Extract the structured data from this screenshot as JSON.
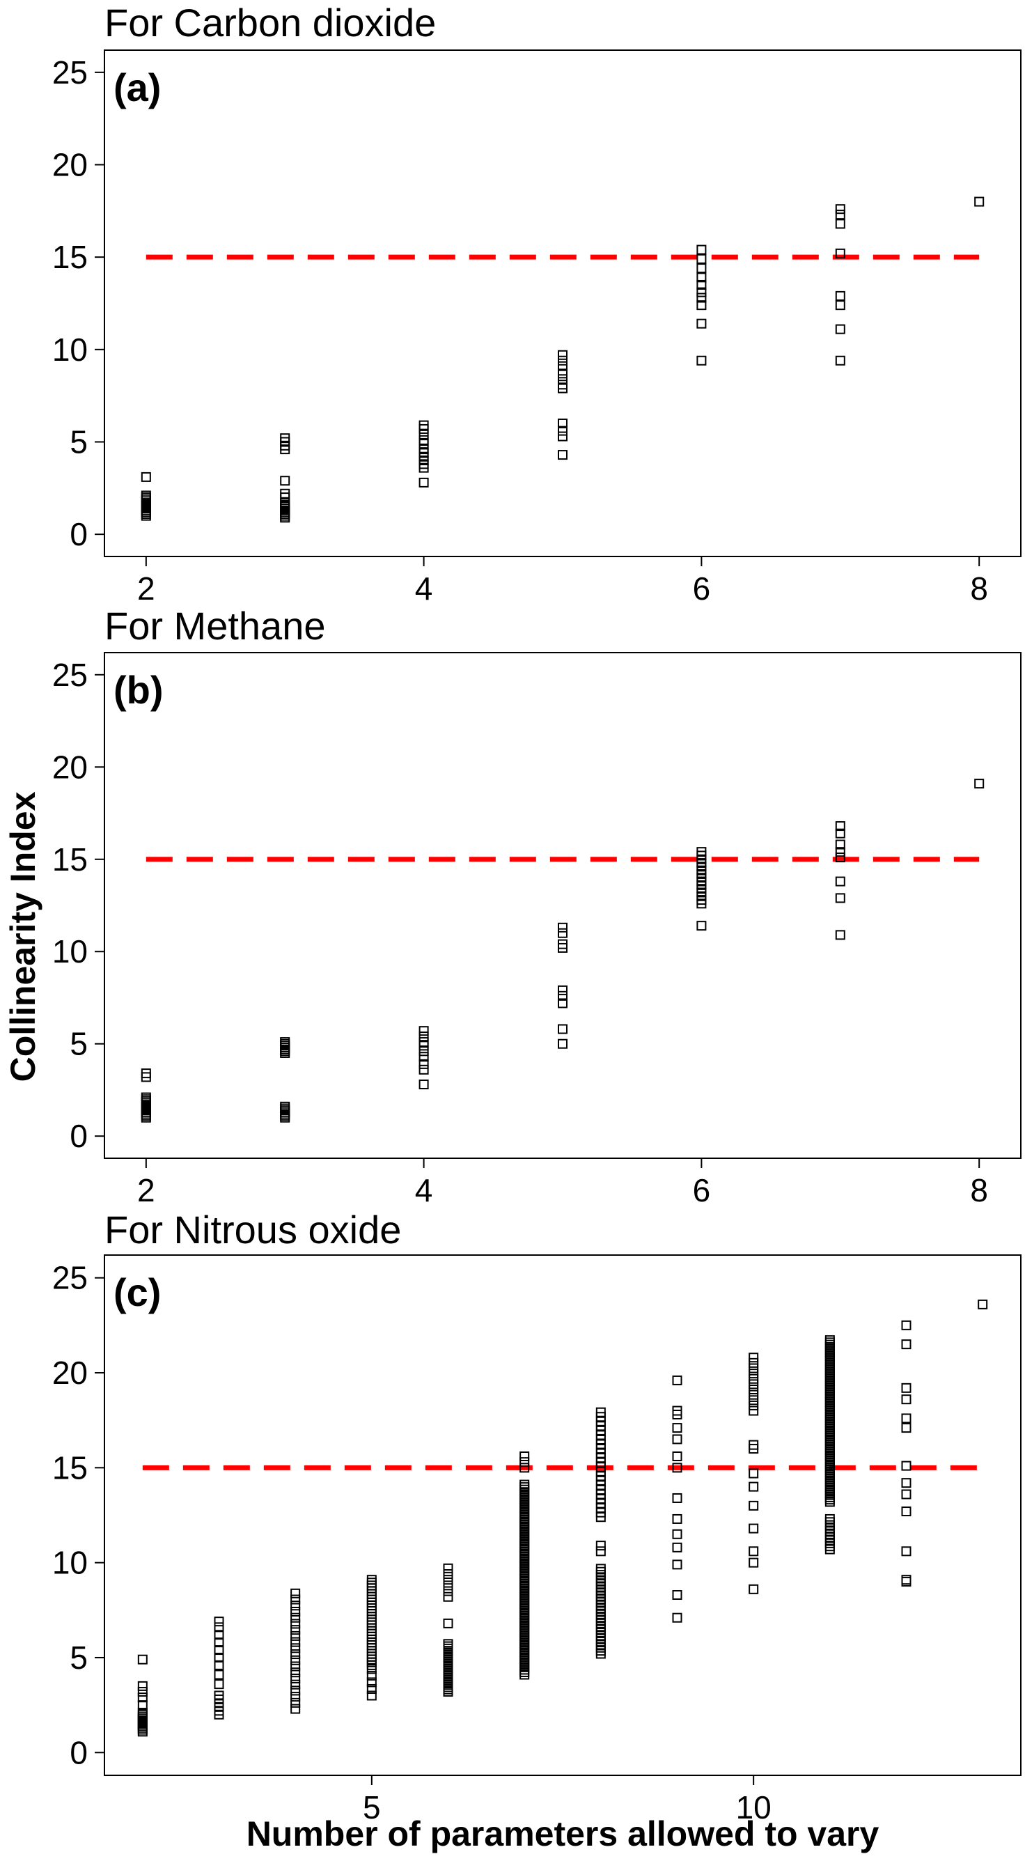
{
  "ylabel": "Collinearity Index",
  "xlabel": "Number of parameters allowed to vary",
  "colors": {
    "threshold_line": "#ff0000",
    "markers": "#000000"
  },
  "chart_data": [
    {
      "type": "scatter",
      "panel_label": "(a)",
      "title": "For Carbon dioxide",
      "xlim": [
        1.7,
        8.3
      ],
      "ylim": [
        -1.2,
        26.2
      ],
      "xticks": [
        2,
        4,
        6,
        8
      ],
      "yticks": [
        0,
        5,
        10,
        15,
        20,
        25
      ],
      "threshold": 15,
      "threshold_x": [
        2,
        8
      ],
      "marker": "open-square",
      "points": {
        "2": [
          1.0,
          1.1,
          1.2,
          1.3,
          1.4,
          1.5,
          1.6,
          1.7,
          1.8,
          1.9,
          2.0,
          2.1,
          3.1
        ],
        "3": [
          0.9,
          1.0,
          1.1,
          1.2,
          1.3,
          1.4,
          1.5,
          1.6,
          1.7,
          2.0,
          2.2,
          2.9,
          4.6,
          4.8,
          5.0,
          5.2
        ],
        "4": [
          2.8,
          3.6,
          3.8,
          4.0,
          4.2,
          4.4,
          4.6,
          4.9,
          5.1,
          5.4,
          5.7,
          5.9
        ],
        "5": [
          4.3,
          5.3,
          5.6,
          6.0,
          7.9,
          8.1,
          8.4,
          8.7,
          9.1,
          9.4,
          9.7
        ],
        "6": [
          9.4,
          11.4,
          12.4,
          12.8,
          13.1,
          13.5,
          13.9,
          14.4,
          14.9,
          15.4
        ],
        "7": [
          9.4,
          11.1,
          12.4,
          12.9,
          15.2,
          16.8,
          17.3,
          17.6
        ],
        "8": [
          18.0
        ]
      }
    },
    {
      "type": "scatter",
      "panel_label": "(b)",
      "title": "For Methane",
      "xlim": [
        1.7,
        8.3
      ],
      "ylim": [
        -1.2,
        26.2
      ],
      "xticks": [
        2,
        4,
        6,
        8
      ],
      "yticks": [
        0,
        5,
        10,
        15,
        20,
        25
      ],
      "threshold": 15,
      "threshold_x": [
        2,
        8
      ],
      "marker": "open-square",
      "points": {
        "2": [
          1.0,
          1.1,
          1.2,
          1.3,
          1.4,
          1.5,
          1.6,
          1.7,
          1.8,
          1.9,
          2.0,
          2.1,
          3.2,
          3.4
        ],
        "3": [
          1.0,
          1.1,
          1.2,
          1.3,
          1.4,
          1.5,
          1.6,
          4.5,
          4.6,
          4.7,
          4.8,
          4.9,
          5.0,
          5.1
        ],
        "4": [
          2.8,
          3.6,
          3.9,
          4.3,
          4.6,
          4.9,
          5.1,
          5.4,
          5.7
        ],
        "5": [
          5.0,
          5.8,
          7.2,
          7.6,
          7.9,
          10.2,
          10.4,
          11.0,
          11.3
        ],
        "6": [
          11.4,
          12.6,
          12.8,
          13.0,
          13.2,
          13.4,
          13.6,
          13.8,
          14.0,
          14.2,
          14.4,
          14.6,
          14.8,
          15.0,
          15.2,
          15.4
        ],
        "7": [
          10.9,
          12.9,
          13.8,
          15.1,
          15.4,
          15.8,
          16.4,
          16.8
        ],
        "8": [
          19.1
        ]
      }
    },
    {
      "type": "scatter",
      "panel_label": "(c)",
      "title": "For Nitrous oxide",
      "xlim": [
        1.5,
        13.5
      ],
      "ylim": [
        -1.2,
        26.2
      ],
      "xticks": [
        5,
        10
      ],
      "yticks": [
        0,
        5,
        10,
        15,
        20,
        25
      ],
      "threshold": 15,
      "threshold_x": [
        2,
        13
      ],
      "marker": "open-square",
      "points": {
        "2": [
          1.1,
          1.2,
          1.3,
          1.4,
          1.5,
          1.6,
          1.7,
          1.8,
          1.9,
          2.0,
          2.1,
          2.5,
          2.9,
          3.2,
          3.5,
          4.9
        ],
        "3": [
          2.0,
          2.2,
          2.4,
          2.6,
          2.8,
          3.0,
          3.6,
          4.1,
          4.6,
          5.0,
          5.4,
          5.8,
          6.2,
          6.6,
          6.9
        ]
      },
      "ranges": {
        "4": [
          [
            2.3,
            8.6,
            0.32
          ]
        ],
        "5": [
          [
            3.0,
            4.4,
            0.35
          ],
          [
            4.6,
            9.1,
            0.15
          ]
        ],
        "6": [
          [
            3.2,
            5.8,
            0.12
          ],
          [
            6.8,
            6.9,
            0.2
          ],
          [
            8.2,
            9.9,
            0.3
          ]
        ],
        "7": [
          [
            4.1,
            14.2,
            0.13
          ],
          [
            15.0,
            15.6,
            0.3
          ]
        ],
        "8": [
          [
            5.2,
            9.8,
            0.16
          ],
          [
            10.6,
            11.1,
            0.3
          ],
          [
            12.4,
            18.1,
            0.24
          ]
        ],
        "9": [
          [
            7.1,
            7.1,
            1
          ],
          [
            8.3,
            8.3,
            1
          ],
          [
            9.9,
            9.9,
            1
          ],
          [
            10.8,
            10.8,
            1
          ],
          [
            11.5,
            11.5,
            1
          ],
          [
            12.3,
            12.3,
            1
          ],
          [
            13.4,
            13.4,
            1
          ],
          [
            15.0,
            15.0,
            1
          ],
          [
            15.6,
            15.6,
            1
          ],
          [
            16.5,
            16.5,
            1
          ],
          [
            17.1,
            17.1,
            1
          ],
          [
            17.8,
            17.8,
            1
          ],
          [
            18.0,
            18.0,
            1
          ],
          [
            19.6,
            19.6,
            1
          ]
        ],
        "10": [
          [
            8.6,
            8.6,
            1
          ],
          [
            10.0,
            10.0,
            1
          ],
          [
            10.6,
            10.6,
            1
          ],
          [
            11.8,
            11.8,
            1
          ],
          [
            13.0,
            13.0,
            1
          ],
          [
            14.0,
            14.0,
            1
          ],
          [
            14.7,
            14.7,
            1
          ],
          [
            16.0,
            16.2,
            0.2
          ],
          [
            18.0,
            20.8,
            0.28
          ]
        ],
        "11": [
          [
            10.7,
            12.3,
            0.16
          ],
          [
            13.2,
            21.8,
            0.12
          ]
        ],
        "12": [
          [
            9.0,
            9.1,
            0.1
          ],
          [
            10.6,
            10.6,
            1
          ],
          [
            12.7,
            12.7,
            1
          ],
          [
            13.6,
            13.6,
            1
          ],
          [
            14.2,
            14.2,
            1
          ],
          [
            15.1,
            15.1,
            1
          ],
          [
            17.1,
            17.1,
            1
          ],
          [
            17.6,
            17.6,
            1
          ],
          [
            18.6,
            18.6,
            1
          ],
          [
            19.2,
            19.2,
            1
          ],
          [
            21.5,
            21.5,
            1
          ],
          [
            22.5,
            22.5,
            1
          ]
        ],
        "13": [
          [
            23.6,
            23.6,
            1
          ]
        ]
      }
    }
  ]
}
